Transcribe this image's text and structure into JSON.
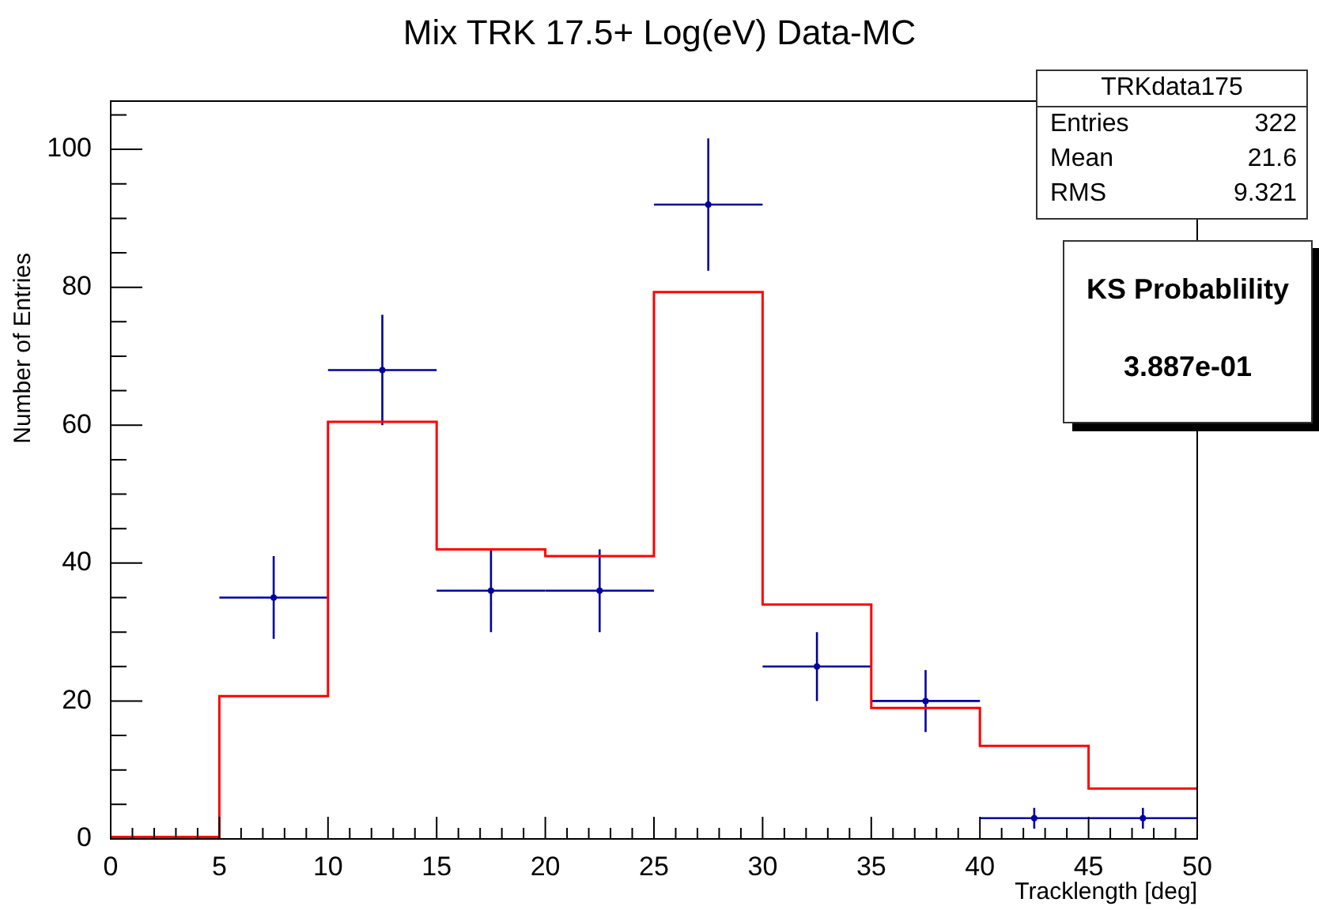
{
  "chart_data": {
    "type": "histogram",
    "title": "Mix TRK 17.5+ Log(eV) Data-MC",
    "xlabel": "Tracklength [deg]",
    "ylabel": "Number of Entries",
    "bins": [
      0,
      5,
      10,
      15,
      20,
      25,
      30,
      35,
      40,
      45,
      50
    ],
    "series": [
      {
        "type": "histogram",
        "color": "#ff0000",
        "values": [
          0.3,
          20.7,
          60.5,
          42,
          41,
          79.3,
          34,
          19,
          13.5,
          7.3
        ]
      },
      {
        "type": "scatter",
        "color": "#0000a0",
        "x": [
          7.5,
          12.5,
          17.5,
          22.5,
          27.5,
          32.5,
          37.5,
          42.5,
          47.5
        ],
        "values": [
          35,
          68,
          36,
          36,
          92,
          25,
          20,
          3,
          3
        ],
        "errors": [
          6,
          8,
          6,
          6,
          9.6,
          5,
          4.5,
          1.5,
          1.5
        ],
        "xerrors": [
          2.5,
          2.5,
          2.5,
          2.5,
          2.5,
          2.5,
          2.5,
          2.5,
          2.5
        ]
      }
    ],
    "xlim": [
      0,
      50
    ],
    "ylim": [
      0,
      107
    ],
    "xticks": [
      0,
      {
        "value": 1,
        "label": null
      },
      {
        "value": 2,
        "label": null
      },
      {
        "value": 3,
        "label": null
      },
      {
        "value": 4,
        "label": null
      },
      5,
      {
        "value": 6,
        "label": null
      },
      {
        "value": 7,
        "label": null
      },
      {
        "value": 8,
        "label": null
      },
      {
        "value": 9,
        "label": null
      },
      10,
      {
        "value": 11,
        "label": null
      },
      {
        "value": 12,
        "label": null
      },
      {
        "value": 13,
        "label": null
      },
      {
        "value": 14,
        "label": null
      },
      15,
      {
        "value": 16,
        "label": null
      },
      {
        "value": 17,
        "label": null
      },
      {
        "value": 18,
        "label": null
      },
      {
        "value": 19,
        "label": null
      },
      20,
      {
        "value": 21,
        "label": null
      },
      {
        "value": 22,
        "label": null
      },
      {
        "value": 23,
        "label": null
      },
      {
        "value": 24,
        "label": null
      },
      25,
      {
        "value": 26,
        "label": null
      },
      {
        "value": 27,
        "label": null
      },
      {
        "value": 28,
        "label": null
      },
      {
        "value": 29,
        "label": null
      },
      30,
      {
        "value": 31,
        "label": null
      },
      {
        "value": 32,
        "label": null
      },
      {
        "value": 33,
        "label": null
      },
      {
        "value": 34,
        "label": null
      },
      35,
      {
        "value": 36,
        "label": null
      },
      {
        "value": 37,
        "label": null
      },
      {
        "value": 38,
        "label": null
      },
      {
        "value": 39,
        "label": null
      },
      40,
      {
        "value": 41,
        "label": null
      },
      {
        "value": 42,
        "label": null
      },
      {
        "value": 43,
        "label": null
      },
      {
        "value": 44,
        "label": null
      },
      45,
      {
        "value": 46,
        "label": null
      },
      {
        "value": 47,
        "label": null
      },
      {
        "value": 48,
        "label": null
      },
      {
        "value": 49,
        "label": null
      },
      50
    ],
    "yticks": [
      0,
      {
        "value": 5,
        "label": null
      },
      {
        "value": 10,
        "label": null
      },
      {
        "value": 15,
        "label": null
      },
      20,
      {
        "value": 25,
        "label": null
      },
      {
        "value": 30,
        "label": null
      },
      {
        "value": 35,
        "label": null
      },
      40,
      {
        "value": 45,
        "label": null
      },
      {
        "value": 50,
        "label": null
      },
      {
        "value": 55,
        "label": null
      },
      60,
      {
        "value": 65,
        "label": null
      },
      {
        "value": 70,
        "label": null
      },
      {
        "value": 75,
        "label": null
      },
      80,
      {
        "value": 85,
        "label": null
      },
      {
        "value": 90,
        "label": null
      },
      {
        "value": 95,
        "label": null
      },
      100,
      {
        "value": 105,
        "label": null
      }
    ],
    "grid": false,
    "legend": false,
    "annotations": [
      "TRKdata175",
      "Entries",
      "322",
      "Mean",
      "21.6",
      "RMS",
      "9.321",
      "KS Probablility",
      "3.887e-01"
    ]
  }
}
